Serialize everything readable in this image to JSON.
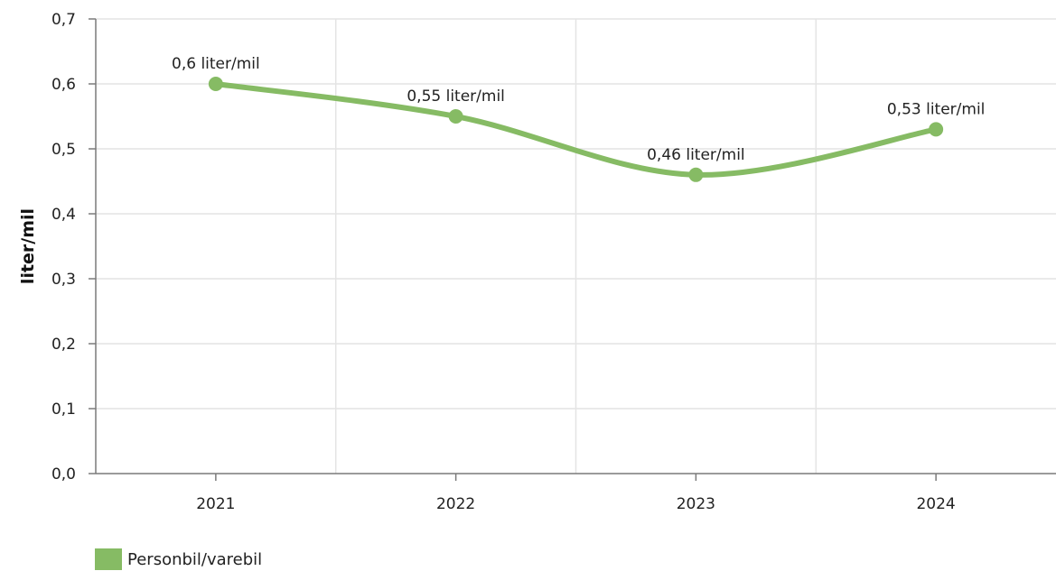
{
  "chart_data": {
    "type": "line",
    "categories": [
      "2021",
      "2022",
      "2023",
      "2024"
    ],
    "series": [
      {
        "name": "Personbil/varebil",
        "values": [
          0.6,
          0.55,
          0.46,
          0.53
        ],
        "data_labels": [
          "0,6 liter/mil",
          "0,55 liter/mil",
          "0,46 liter/mil",
          "0,53 liter/mil"
        ],
        "color": "#86bb64"
      }
    ],
    "ylabel": "liter/mil",
    "xlabel": "",
    "ylim": [
      0,
      0.7
    ],
    "yticks": [
      "0,0",
      "0,1",
      "0,2",
      "0,3",
      "0,4",
      "0,5",
      "0,6",
      "0,7"
    ],
    "grid": true,
    "legend_position": "bottom-left"
  }
}
